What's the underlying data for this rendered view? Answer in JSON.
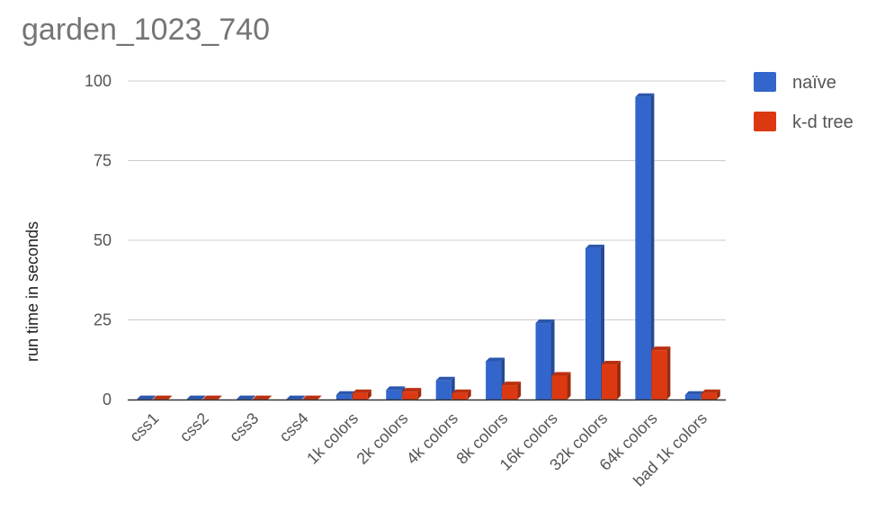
{
  "chart_data": {
    "type": "bar",
    "title": "garden_1023_740",
    "xlabel": "",
    "ylabel": "run time in seconds",
    "ylim": [
      0,
      100
    ],
    "yticks": [
      0,
      25,
      50,
      75,
      100
    ],
    "grid": true,
    "legend_position": "right",
    "three_d": true,
    "categories": [
      "css1",
      "css2",
      "css3",
      "css4",
      "1k colors",
      "2k colors",
      "4k colors",
      "8k colors",
      "16k colors",
      "32k colors",
      "64k colors",
      "bad 1k colors"
    ],
    "series": [
      {
        "name": "naïve",
        "color": "#3366cc",
        "values": [
          0.1,
          0.1,
          0.1,
          0.1,
          1.5,
          3.0,
          6.0,
          12.0,
          24.0,
          47.5,
          95.0,
          1.5
        ]
      },
      {
        "name": "k-d tree",
        "color": "#dc3912",
        "values": [
          0.1,
          0.1,
          0.1,
          0.1,
          2.0,
          2.5,
          2.0,
          4.5,
          7.5,
          11.0,
          15.5,
          2.0
        ]
      }
    ]
  }
}
